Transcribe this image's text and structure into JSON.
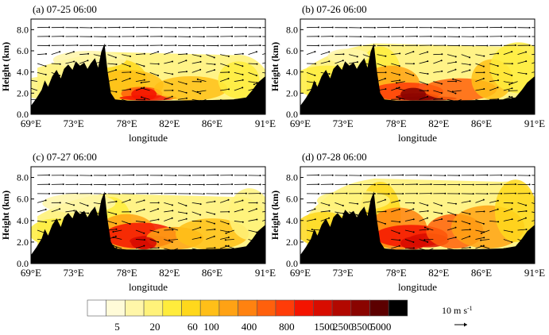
{
  "chart_data": [
    {
      "type": "area",
      "panel_label": "(a) 07-25 06:00",
      "xlabel": "longitude",
      "ylabel": "Height (km)",
      "xlim": [
        69,
        91
      ],
      "ylim": [
        0,
        9
      ],
      "x_ticks": [
        "69°E",
        "73°E",
        "78°E",
        "82°E",
        "86°E",
        "91°E"
      ],
      "y_ticks": [
        "0.0",
        "2.0",
        "4.0",
        "6.0",
        "8.0"
      ],
      "shading_top_km": 5.6,
      "max_level_index": 11
    },
    {
      "type": "area",
      "panel_label": "(b) 07-26 06:00",
      "xlabel": "longitude",
      "ylabel": "Height (km)",
      "xlim": [
        69,
        91
      ],
      "ylim": [
        0,
        9
      ],
      "x_ticks": [
        "69°E",
        "73°E",
        "78°E",
        "82°E",
        "86°E",
        "91°E"
      ],
      "y_ticks": [
        "0.0",
        "2.0",
        "4.0",
        "6.0",
        "8.0"
      ],
      "shading_top_km": 6.4,
      "max_level_index": 14
    },
    {
      "type": "area",
      "panel_label": "(c) 07-27 06:00",
      "xlabel": "longitude",
      "ylabel": "Height (km)",
      "xlim": [
        69,
        91
      ],
      "ylim": [
        0,
        9
      ],
      "x_ticks": [
        "69°E",
        "73°E",
        "78°E",
        "82°E",
        "86°E",
        "91°E"
      ],
      "y_ticks": [
        "0.0",
        "2.0",
        "4.0",
        "6.0",
        "8.0"
      ],
      "shading_top_km": 6.2,
      "max_level_index": 12
    },
    {
      "type": "area",
      "panel_label": "(d) 07-28 06:00",
      "xlabel": "longitude",
      "ylabel": "Height (km)",
      "xlim": [
        69,
        91
      ],
      "ylim": [
        0,
        9
      ],
      "x_ticks": [
        "69°E",
        "73°E",
        "78°E",
        "82°E",
        "86°E",
        "91°E"
      ],
      "y_ticks": [
        "0.0",
        "2.0",
        "4.0",
        "6.0",
        "8.0"
      ],
      "shading_top_km": 7.6,
      "max_level_index": 12
    }
  ],
  "colorbar": {
    "colors": [
      "#ffffff",
      "#fffbd8",
      "#fff6a8",
      "#fff27a",
      "#ffec3c",
      "#ffd81c",
      "#ffbf18",
      "#ffa214",
      "#ff8210",
      "#ff600c",
      "#ff3c08",
      "#f41400",
      "#d80c00",
      "#b20800",
      "#8a0400",
      "#5c0000",
      "#000000"
    ],
    "labels": [
      "5",
      "20",
      "60",
      "100",
      "400",
      "800",
      "1500",
      "2500",
      "3500",
      "5000"
    ],
    "label_after_box": [
      1,
      3,
      5,
      6,
      8,
      10,
      12,
      13,
      14,
      15
    ]
  },
  "reference_vector": {
    "label": "10 m s",
    "exponent": "-1"
  }
}
